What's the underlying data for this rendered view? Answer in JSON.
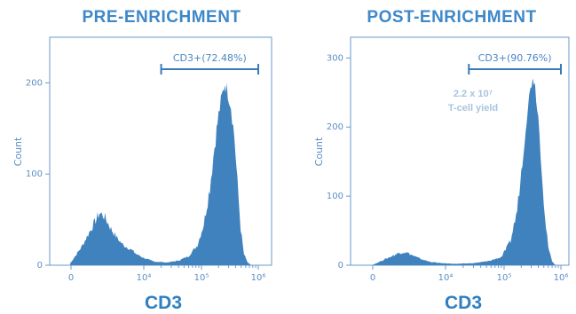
{
  "colors": {
    "histogram": "#3f82bd",
    "title": "#3d88c9",
    "axis": "#6b9acb",
    "annotation": "#a8c4de"
  },
  "chart_data": [
    {
      "type": "area",
      "title": "PRE-ENRICHMENT",
      "xlabel": "CD3",
      "ylabel": "Count",
      "xscale": "biexponential",
      "ylim": [
        0,
        250
      ],
      "yticks": [
        "0",
        "100",
        "200"
      ],
      "xticks": [
        "0",
        "10⁴",
        "10⁵",
        "10⁶"
      ],
      "gate": {
        "label": "CD3+(72.48%)",
        "range": [
          20000,
          1000000
        ]
      },
      "histogram": [
        {
          "x": -300,
          "y": 2
        },
        {
          "x": 200,
          "y": 20
        },
        {
          "x": 600,
          "y": 45
        },
        {
          "x": 900,
          "y": 57
        },
        {
          "x": 1200,
          "y": 54
        },
        {
          "x": 1800,
          "y": 40
        },
        {
          "x": 2500,
          "y": 30
        },
        {
          "x": 3500,
          "y": 22
        },
        {
          "x": 5000,
          "y": 18
        },
        {
          "x": 7000,
          "y": 12
        },
        {
          "x": 10000,
          "y": 8
        },
        {
          "x": 15000,
          "y": 4
        },
        {
          "x": 25000,
          "y": 3
        },
        {
          "x": 40000,
          "y": 5
        },
        {
          "x": 60000,
          "y": 10
        },
        {
          "x": 85000,
          "y": 22
        },
        {
          "x": 110000,
          "y": 45
        },
        {
          "x": 140000,
          "y": 85
        },
        {
          "x": 170000,
          "y": 130
        },
        {
          "x": 200000,
          "y": 165
        },
        {
          "x": 230000,
          "y": 185
        },
        {
          "x": 260000,
          "y": 200
        },
        {
          "x": 290000,
          "y": 190
        },
        {
          "x": 330000,
          "y": 175
        },
        {
          "x": 380000,
          "y": 140
        },
        {
          "x": 430000,
          "y": 90
        },
        {
          "x": 490000,
          "y": 40
        },
        {
          "x": 560000,
          "y": 12
        },
        {
          "x": 650000,
          "y": 3
        },
        {
          "x": 750000,
          "y": 0
        }
      ]
    },
    {
      "type": "area",
      "title": "POST-ENRICHMENT",
      "xlabel": "CD3",
      "ylabel": "Count",
      "xscale": "biexponential",
      "ylim": [
        0,
        330
      ],
      "yticks": [
        "0",
        "100",
        "200",
        "300"
      ],
      "xticks": [
        "0",
        "10⁴",
        "10⁵",
        "10⁶"
      ],
      "gate": {
        "label": "CD3+(90.76%)",
        "range": [
          25000,
          1000000
        ]
      },
      "annotation": {
        "line1": "2.2 x 10⁷",
        "line2": "T-cell yield"
      },
      "histogram": [
        {
          "x": -300,
          "y": 0
        },
        {
          "x": 300,
          "y": 10
        },
        {
          "x": 800,
          "y": 18
        },
        {
          "x": 1200,
          "y": 19
        },
        {
          "x": 1800,
          "y": 14
        },
        {
          "x": 2800,
          "y": 9
        },
        {
          "x": 4500,
          "y": 5
        },
        {
          "x": 8000,
          "y": 3
        },
        {
          "x": 15000,
          "y": 2
        },
        {
          "x": 30000,
          "y": 3
        },
        {
          "x": 55000,
          "y": 6
        },
        {
          "x": 90000,
          "y": 12
        },
        {
          "x": 130000,
          "y": 35
        },
        {
          "x": 170000,
          "y": 80
        },
        {
          "x": 210000,
          "y": 150
        },
        {
          "x": 250000,
          "y": 215
        },
        {
          "x": 290000,
          "y": 255
        },
        {
          "x": 320000,
          "y": 275
        },
        {
          "x": 350000,
          "y": 260
        },
        {
          "x": 400000,
          "y": 215
        },
        {
          "x": 460000,
          "y": 140
        },
        {
          "x": 520000,
          "y": 70
        },
        {
          "x": 600000,
          "y": 25
        },
        {
          "x": 700000,
          "y": 6
        },
        {
          "x": 800000,
          "y": 0
        }
      ]
    }
  ]
}
